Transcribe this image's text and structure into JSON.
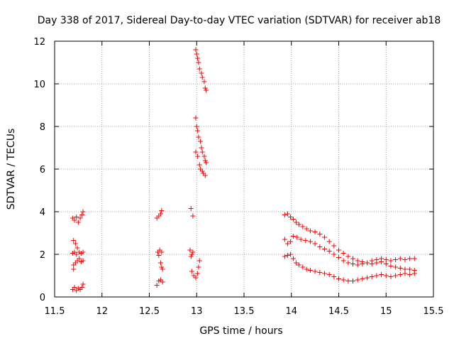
{
  "chart_data": {
    "type": "scatter",
    "title": "Day 338 of 2017, Sidereal Day-to-day VTEC variation (SDTVAR) for receiver ab18",
    "xlabel": "GPS time / hours",
    "ylabel": "SDTVAR / TECUs",
    "xlim": [
      11.5,
      15.5
    ],
    "ylim": [
      0,
      12
    ],
    "xticks": [
      "11.5",
      "12",
      "12.5",
      "13",
      "13.5",
      "14",
      "14.5",
      "15",
      "15.5"
    ],
    "xtick_values": [
      11.5,
      12,
      12.5,
      13,
      13.5,
      14,
      14.5,
      15,
      15.5
    ],
    "yticks": [
      "0",
      "2",
      "4",
      "6",
      "8",
      "10",
      "12"
    ],
    "ytick_values": [
      0,
      2,
      4,
      6,
      8,
      10,
      12
    ],
    "grid": true,
    "marker": "+",
    "color": "#ff0000",
    "series": [
      {
        "name": "SDTVAR",
        "points": [
          [
            11.69,
            3.7
          ],
          [
            11.71,
            3.6
          ],
          [
            11.73,
            3.75
          ],
          [
            11.75,
            3.5
          ],
          [
            11.77,
            3.7
          ],
          [
            11.79,
            3.85
          ],
          [
            11.8,
            4.0
          ],
          [
            11.7,
            2.65
          ],
          [
            11.72,
            2.5
          ],
          [
            11.74,
            2.3
          ],
          [
            11.71,
            2.1
          ],
          [
            11.69,
            2.05
          ],
          [
            11.73,
            2.0
          ],
          [
            11.76,
            2.1
          ],
          [
            11.78,
            2.05
          ],
          [
            11.8,
            2.1
          ],
          [
            11.7,
            1.5
          ],
          [
            11.72,
            1.6
          ],
          [
            11.74,
            1.7
          ],
          [
            11.76,
            1.8
          ],
          [
            11.78,
            1.65
          ],
          [
            11.8,
            1.7
          ],
          [
            11.7,
            1.3
          ],
          [
            11.69,
            0.35
          ],
          [
            11.71,
            0.45
          ],
          [
            11.73,
            0.3
          ],
          [
            11.75,
            0.4
          ],
          [
            11.77,
            0.35
          ],
          [
            11.79,
            0.45
          ],
          [
            11.8,
            0.6
          ],
          [
            12.58,
            3.7
          ],
          [
            12.6,
            3.8
          ],
          [
            12.62,
            3.9
          ],
          [
            12.63,
            4.05
          ],
          [
            12.59,
            2.1
          ],
          [
            12.61,
            2.2
          ],
          [
            12.63,
            2.1
          ],
          [
            12.6,
            1.95
          ],
          [
            12.62,
            1.6
          ],
          [
            12.63,
            1.4
          ],
          [
            12.64,
            1.3
          ],
          [
            12.58,
            0.55
          ],
          [
            12.6,
            0.75
          ],
          [
            12.62,
            0.8
          ],
          [
            12.64,
            0.7
          ],
          [
            12.94,
            4.15
          ],
          [
            12.96,
            3.8
          ],
          [
            12.93,
            2.2
          ],
          [
            12.95,
            2.0
          ],
          [
            12.96,
            2.1
          ],
          [
            12.94,
            1.9
          ],
          [
            12.95,
            1.2
          ],
          [
            12.97,
            1.0
          ],
          [
            12.99,
            0.9
          ],
          [
            13.01,
            1.1
          ],
          [
            13.02,
            1.4
          ],
          [
            13.03,
            1.7
          ],
          [
            12.99,
            11.6
          ],
          [
            13.0,
            11.4
          ],
          [
            13.01,
            11.2
          ],
          [
            13.02,
            11.0
          ],
          [
            13.03,
            10.7
          ],
          [
            13.05,
            10.5
          ],
          [
            13.06,
            10.3
          ],
          [
            13.08,
            10.1
          ],
          [
            13.09,
            9.8
          ],
          [
            13.1,
            9.7
          ],
          [
            12.99,
            8.4
          ],
          [
            13.0,
            8.0
          ],
          [
            13.01,
            7.8
          ],
          [
            13.02,
            7.5
          ],
          [
            13.04,
            7.3
          ],
          [
            13.05,
            7.0
          ],
          [
            13.06,
            6.8
          ],
          [
            13.08,
            6.6
          ],
          [
            13.09,
            6.4
          ],
          [
            13.1,
            6.3
          ],
          [
            12.99,
            6.8
          ],
          [
            13.01,
            6.6
          ],
          [
            13.03,
            6.2
          ],
          [
            13.04,
            6.0
          ],
          [
            13.06,
            5.9
          ],
          [
            13.07,
            5.8
          ],
          [
            13.09,
            5.7
          ],
          [
            13.93,
            3.85
          ],
          [
            13.96,
            3.9
          ],
          [
            13.99,
            3.75
          ],
          [
            14.02,
            3.65
          ],
          [
            14.05,
            3.5
          ],
          [
            14.08,
            3.4
          ],
          [
            14.12,
            3.3
          ],
          [
            14.16,
            3.2
          ],
          [
            14.2,
            3.1
          ],
          [
            14.25,
            3.05
          ],
          [
            14.3,
            2.95
          ],
          [
            14.35,
            2.8
          ],
          [
            14.4,
            2.6
          ],
          [
            14.45,
            2.4
          ],
          [
            14.5,
            2.2
          ],
          [
            14.55,
            2.05
          ],
          [
            14.6,
            1.9
          ],
          [
            14.65,
            1.8
          ],
          [
            14.7,
            1.7
          ],
          [
            14.75,
            1.65
          ],
          [
            14.8,
            1.6
          ],
          [
            14.85,
            1.7
          ],
          [
            14.9,
            1.75
          ],
          [
            14.95,
            1.8
          ],
          [
            15.0,
            1.75
          ],
          [
            15.05,
            1.7
          ],
          [
            15.1,
            1.75
          ],
          [
            15.15,
            1.8
          ],
          [
            15.2,
            1.75
          ],
          [
            15.25,
            1.8
          ],
          [
            15.3,
            1.8
          ],
          [
            13.93,
            2.7
          ],
          [
            13.96,
            2.5
          ],
          [
            13.99,
            2.6
          ],
          [
            14.02,
            2.85
          ],
          [
            14.06,
            2.8
          ],
          [
            14.1,
            2.7
          ],
          [
            14.15,
            2.65
          ],
          [
            14.2,
            2.6
          ],
          [
            14.25,
            2.5
          ],
          [
            14.3,
            2.35
          ],
          [
            14.35,
            2.25
          ],
          [
            14.4,
            2.15
          ],
          [
            14.45,
            2.0
          ],
          [
            14.5,
            1.85
          ],
          [
            14.55,
            1.7
          ],
          [
            14.6,
            1.6
          ],
          [
            14.65,
            1.55
          ],
          [
            14.7,
            1.5
          ],
          [
            14.75,
            1.55
          ],
          [
            14.8,
            1.6
          ],
          [
            14.85,
            1.55
          ],
          [
            14.9,
            1.6
          ],
          [
            14.95,
            1.65
          ],
          [
            15.0,
            1.55
          ],
          [
            15.05,
            1.45
          ],
          [
            15.1,
            1.4
          ],
          [
            15.15,
            1.35
          ],
          [
            15.2,
            1.3
          ],
          [
            15.25,
            1.3
          ],
          [
            15.3,
            1.25
          ],
          [
            13.93,
            1.9
          ],
          [
            13.96,
            1.95
          ],
          [
            13.99,
            2.0
          ],
          [
            14.02,
            1.8
          ],
          [
            14.05,
            1.6
          ],
          [
            14.08,
            1.5
          ],
          [
            14.12,
            1.4
          ],
          [
            14.16,
            1.3
          ],
          [
            14.2,
            1.25
          ],
          [
            14.25,
            1.2
          ],
          [
            14.3,
            1.15
          ],
          [
            14.35,
            1.1
          ],
          [
            14.4,
            1.05
          ],
          [
            14.45,
            0.95
          ],
          [
            14.5,
            0.85
          ],
          [
            14.55,
            0.8
          ],
          [
            14.6,
            0.75
          ],
          [
            14.65,
            0.75
          ],
          [
            14.7,
            0.8
          ],
          [
            14.75,
            0.85
          ],
          [
            14.8,
            0.9
          ],
          [
            14.85,
            0.95
          ],
          [
            14.9,
            1.0
          ],
          [
            14.95,
            1.05
          ],
          [
            15.0,
            1.0
          ],
          [
            15.05,
            0.95
          ],
          [
            15.1,
            1.0
          ],
          [
            15.15,
            1.05
          ],
          [
            15.2,
            1.1
          ],
          [
            15.25,
            1.05
          ],
          [
            15.3,
            1.1
          ]
        ]
      }
    ]
  }
}
